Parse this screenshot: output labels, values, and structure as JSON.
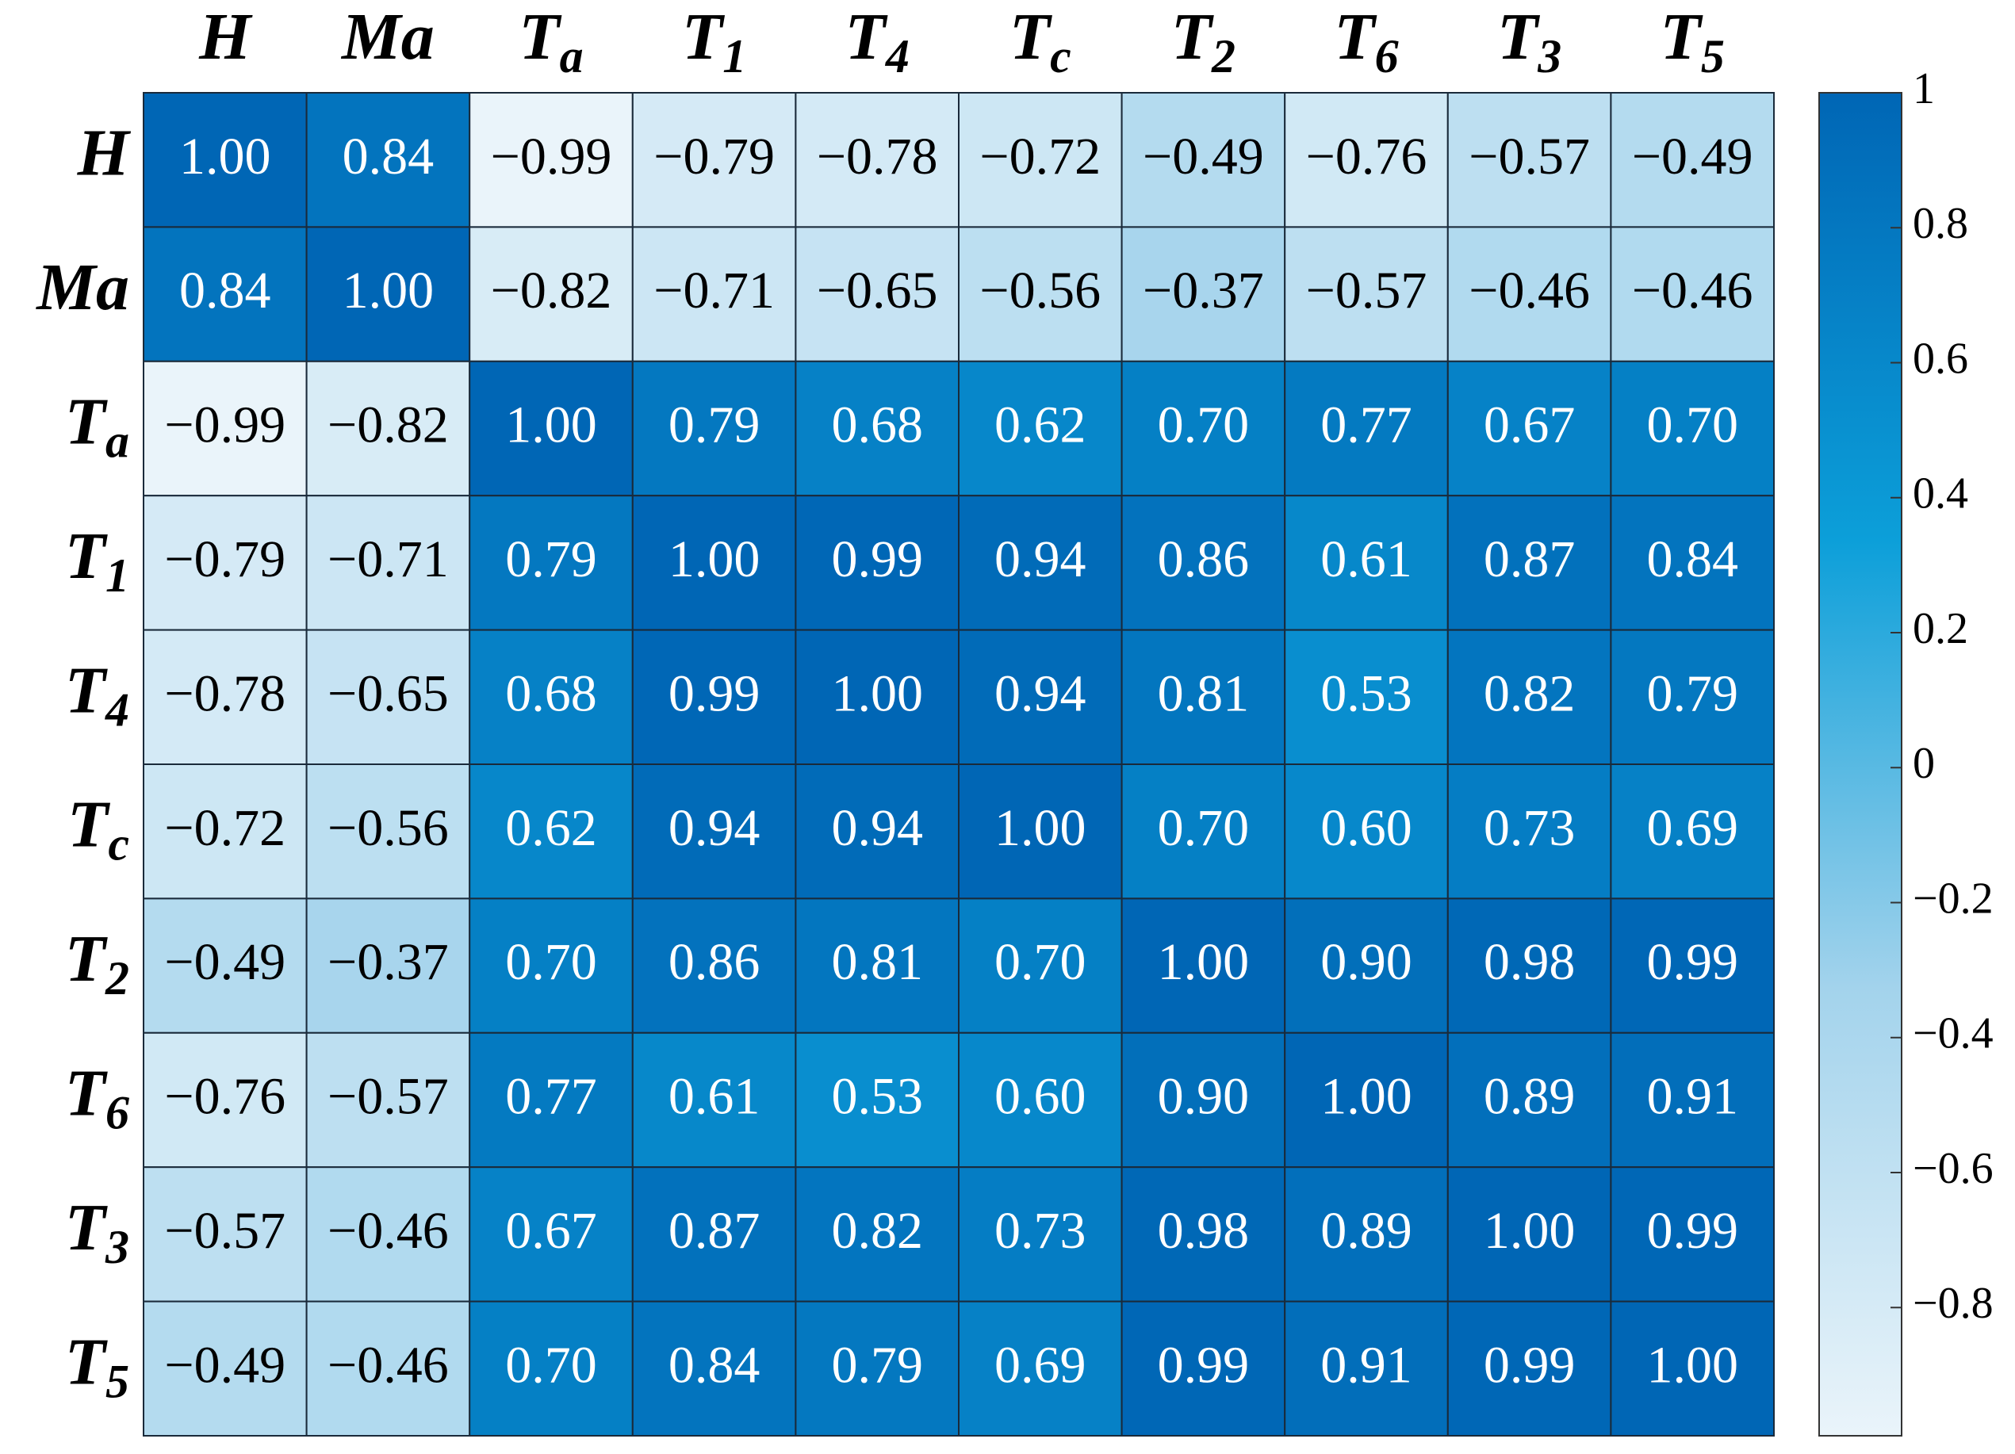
{
  "chart_data": {
    "type": "heatmap",
    "categories": [
      {
        "label": "H"
      },
      {
        "label": "Ma"
      },
      {
        "label": "T",
        "sub": "a"
      },
      {
        "label": "T",
        "sub": "1"
      },
      {
        "label": "T",
        "sub": "4"
      },
      {
        "label": "T",
        "sub": "c"
      },
      {
        "label": "T",
        "sub": "2"
      },
      {
        "label": "T",
        "sub": "6"
      },
      {
        "label": "T",
        "sub": "3"
      },
      {
        "label": "T",
        "sub": "5"
      }
    ],
    "values": [
      [
        1.0,
        0.84,
        -0.99,
        -0.79,
        -0.78,
        -0.72,
        -0.49,
        -0.76,
        -0.57,
        -0.49
      ],
      [
        0.84,
        1.0,
        -0.82,
        -0.71,
        -0.65,
        -0.56,
        -0.37,
        -0.57,
        -0.46,
        -0.46
      ],
      [
        -0.99,
        -0.82,
        1.0,
        0.79,
        0.68,
        0.62,
        0.7,
        0.77,
        0.67,
        0.7
      ],
      [
        -0.79,
        -0.71,
        0.79,
        1.0,
        0.99,
        0.94,
        0.86,
        0.61,
        0.87,
        0.84
      ],
      [
        -0.78,
        -0.65,
        0.68,
        0.99,
        1.0,
        0.94,
        0.81,
        0.53,
        0.82,
        0.79
      ],
      [
        -0.72,
        -0.56,
        0.62,
        0.94,
        0.94,
        1.0,
        0.7,
        0.6,
        0.73,
        0.69
      ],
      [
        -0.49,
        -0.37,
        0.7,
        0.86,
        0.81,
        0.7,
        1.0,
        0.9,
        0.98,
        0.99
      ],
      [
        -0.76,
        -0.57,
        0.77,
        0.61,
        0.53,
        0.6,
        0.9,
        1.0,
        0.89,
        0.91
      ],
      [
        -0.57,
        -0.46,
        0.67,
        0.87,
        0.82,
        0.73,
        0.98,
        0.89,
        1.0,
        0.99
      ],
      [
        -0.49,
        -0.46,
        0.7,
        0.84,
        0.79,
        0.69,
        0.99,
        0.91,
        0.99,
        1.0
      ]
    ],
    "value_labels": [
      [
        "1.00",
        "0.84",
        "−0.99",
        "−0.79",
        "−0.78",
        "−0.72",
        "−0.49",
        "−0.76",
        "−0.57",
        "−0.49"
      ],
      [
        "0.84",
        "1.00",
        "−0.82",
        "−0.71",
        "−0.65",
        "−0.56",
        "−0.37",
        "−0.57",
        "−0.46",
        "−0.46"
      ],
      [
        "−0.99",
        "−0.82",
        "1.00",
        "0.79",
        "0.68",
        "0.62",
        "0.70",
        "0.77",
        "0.67",
        "0.70"
      ],
      [
        "−0.79",
        "−0.71",
        "0.79",
        "1.00",
        "0.99",
        "0.94",
        "0.86",
        "0.61",
        "0.87",
        "0.84"
      ],
      [
        "−0.78",
        "−0.65",
        "0.68",
        "0.99",
        "1.00",
        "0.94",
        "0.81",
        "0.53",
        "0.82",
        "0.79"
      ],
      [
        "−0.72",
        "−0.56",
        "0.62",
        "0.94",
        "0.94",
        "1.00",
        "0.70",
        "0.60",
        "0.73",
        "0.69"
      ],
      [
        "−0.49",
        "−0.37",
        "0.70",
        "0.86",
        "0.81",
        "0.70",
        "1.00",
        "0.90",
        "0.98",
        "0.99"
      ],
      [
        "−0.76",
        "−0.57",
        "0.77",
        "0.61",
        "0.53",
        "0.60",
        "0.90",
        "1.00",
        "0.89",
        "0.91"
      ],
      [
        "−0.57",
        "−0.46",
        "0.67",
        "0.87",
        "0.82",
        "0.73",
        "0.98",
        "0.89",
        "1.00",
        "0.99"
      ],
      [
        "−0.49",
        "−0.46",
        "0.70",
        "0.84",
        "0.79",
        "0.69",
        "0.99",
        "0.91",
        "0.99",
        "1.00"
      ]
    ],
    "colormap": [
      "#eaf4fa",
      "#a3d3ec",
      "#0c9fd9",
      "#0066b5"
    ],
    "clim": [
      -0.99,
      1
    ],
    "cticks": [
      1,
      0.8,
      0.6,
      0.4,
      0.2,
      0,
      {
        "value": -0.2,
        "label": "−0.2"
      },
      {
        "value": -0.4,
        "label": "−0.4"
      },
      {
        "value": -0.6,
        "label": "−0.6"
      },
      {
        "value": -0.8,
        "label": "−0.8"
      }
    ]
  }
}
